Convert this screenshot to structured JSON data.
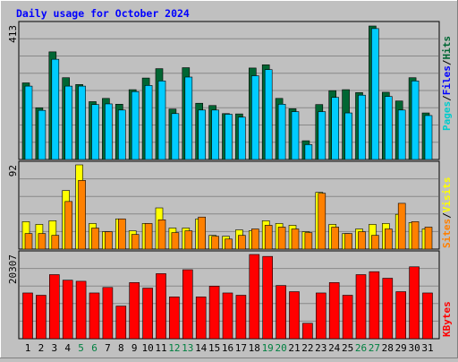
{
  "title": "Daily usage for October 2024",
  "colors": {
    "background": "#c0c0c0",
    "title": "#0000ff",
    "hits": "#006633",
    "files": "#00ccff",
    "pages": "#00cccc",
    "sites": "#ff8000",
    "visits": "#ffff00",
    "kbytes": "#ff0000",
    "weekend_label": "#008040",
    "weekday_label": "#000000"
  },
  "chart_data": [
    {
      "type": "bar",
      "panel": "hits-files-pages",
      "y_max_label": "413",
      "ylim": [
        0,
        413
      ],
      "legend": [
        {
          "text": "Hits",
          "color": "#006633"
        },
        {
          "text": "/",
          "color": "#000000"
        },
        {
          "text": "Files",
          "color": "#0000ff"
        },
        {
          "text": "/",
          "color": "#000000"
        },
        {
          "text": "Pages",
          "color": "#00cccc"
        }
      ],
      "categories": [
        "1",
        "2",
        "3",
        "4",
        "5",
        "6",
        "7",
        "8",
        "9",
        "10",
        "11",
        "12",
        "13",
        "14",
        "15",
        "16",
        "17",
        "18",
        "19",
        "20",
        "21",
        "22",
        "23",
        "24",
        "25",
        "26",
        "27",
        "28",
        "29",
        "30",
        "31"
      ],
      "series": [
        {
          "name": "Hits",
          "values": [
            237,
            160,
            333,
            253,
            232,
            179,
            189,
            171,
            216,
            252,
            281,
            156,
            284,
            174,
            167,
            142,
            141,
            283,
            293,
            189,
            157,
            58,
            170,
            213,
            216,
            207,
            413,
            208,
            181,
            253,
            144
          ]
        },
        {
          "name": "Files",
          "values": [
            227,
            152,
            310,
            227,
            227,
            170,
            172,
            153,
            210,
            229,
            243,
            142,
            255,
            153,
            153,
            140,
            131,
            259,
            278,
            171,
            148,
            46,
            148,
            192,
            144,
            199,
            405,
            195,
            153,
            243,
            136
          ]
        }
      ]
    },
    {
      "type": "bar",
      "panel": "visits-sites",
      "y_max_label": "92",
      "ylim": [
        0,
        92
      ],
      "legend": [
        {
          "text": "Visits",
          "color": "#ffff00"
        },
        {
          "text": "/",
          "color": "#000000"
        },
        {
          "text": "Sites",
          "color": "#ff8000"
        }
      ],
      "categories": [
        "1",
        "2",
        "3",
        "4",
        "5",
        "6",
        "7",
        "8",
        "9",
        "10",
        "11",
        "12",
        "13",
        "14",
        "15",
        "16",
        "17",
        "18",
        "19",
        "20",
        "21",
        "22",
        "23",
        "24",
        "25",
        "26",
        "27",
        "28",
        "29",
        "30",
        "31"
      ],
      "series": [
        {
          "name": "Visits",
          "values": [
            30,
            27,
            31,
            64,
            92,
            28,
            19,
            33,
            20,
            28,
            45,
            23,
            23,
            33,
            15,
            14,
            21,
            20,
            31,
            28,
            26,
            19,
            62,
            27,
            17,
            22,
            27,
            28,
            38,
            29,
            22
          ]
        },
        {
          "name": "Sites",
          "values": [
            17,
            17,
            15,
            52,
            75,
            23,
            19,
            33,
            16,
            28,
            32,
            18,
            20,
            35,
            14,
            11,
            15,
            22,
            26,
            24,
            22,
            18,
            61,
            24,
            17,
            19,
            15,
            22,
            50,
            30,
            24
          ]
        }
      ]
    },
    {
      "type": "bar",
      "panel": "kbytes",
      "y_max_label": "20307",
      "ylim": [
        0,
        20307
      ],
      "legend": [
        {
          "text": "KBytes",
          "color": "#ff0000"
        }
      ],
      "categories": [
        "1",
        "2",
        "3",
        "4",
        "5",
        "6",
        "7",
        "8",
        "9",
        "10",
        "11",
        "12",
        "13",
        "14",
        "15",
        "16",
        "17",
        "18",
        "19",
        "20",
        "21",
        "22",
        "23",
        "24",
        "25",
        "26",
        "27",
        "28",
        "29",
        "30",
        "31"
      ],
      "series": [
        {
          "name": "KBytes",
          "values": [
            11027,
            10478,
            15450,
            14108,
            13850,
            11027,
            12357,
            7873,
            13538,
            12200,
            15686,
            10086,
            16626,
            10086,
            12670,
            11027,
            10478,
            20307,
            19838,
            12827,
            11340,
            3720,
            11027,
            13538,
            10478,
            15450,
            16157,
            14578,
            11340,
            17331,
            11027
          ]
        }
      ]
    }
  ],
  "x_labels": [
    {
      "text": "1",
      "weekend": false
    },
    {
      "text": "2",
      "weekend": false
    },
    {
      "text": "3",
      "weekend": false
    },
    {
      "text": "4",
      "weekend": false
    },
    {
      "text": "5",
      "weekend": true
    },
    {
      "text": "6",
      "weekend": true
    },
    {
      "text": "7",
      "weekend": false
    },
    {
      "text": "8",
      "weekend": false
    },
    {
      "text": "9",
      "weekend": false
    },
    {
      "text": "10",
      "weekend": false
    },
    {
      "text": "11",
      "weekend": false
    },
    {
      "text": "12",
      "weekend": true
    },
    {
      "text": "13",
      "weekend": true
    },
    {
      "text": "14",
      "weekend": false
    },
    {
      "text": "15",
      "weekend": false
    },
    {
      "text": "16",
      "weekend": false
    },
    {
      "text": "17",
      "weekend": false
    },
    {
      "text": "18",
      "weekend": false
    },
    {
      "text": "19",
      "weekend": true
    },
    {
      "text": "20",
      "weekend": true
    },
    {
      "text": "21",
      "weekend": false
    },
    {
      "text": "22",
      "weekend": false
    },
    {
      "text": "23",
      "weekend": false
    },
    {
      "text": "24",
      "weekend": false
    },
    {
      "text": "25",
      "weekend": false
    },
    {
      "text": "26",
      "weekend": true
    },
    {
      "text": "27",
      "weekend": true
    },
    {
      "text": "28",
      "weekend": false
    },
    {
      "text": "29",
      "weekend": false
    },
    {
      "text": "30",
      "weekend": false
    },
    {
      "text": "31",
      "weekend": false
    }
  ]
}
